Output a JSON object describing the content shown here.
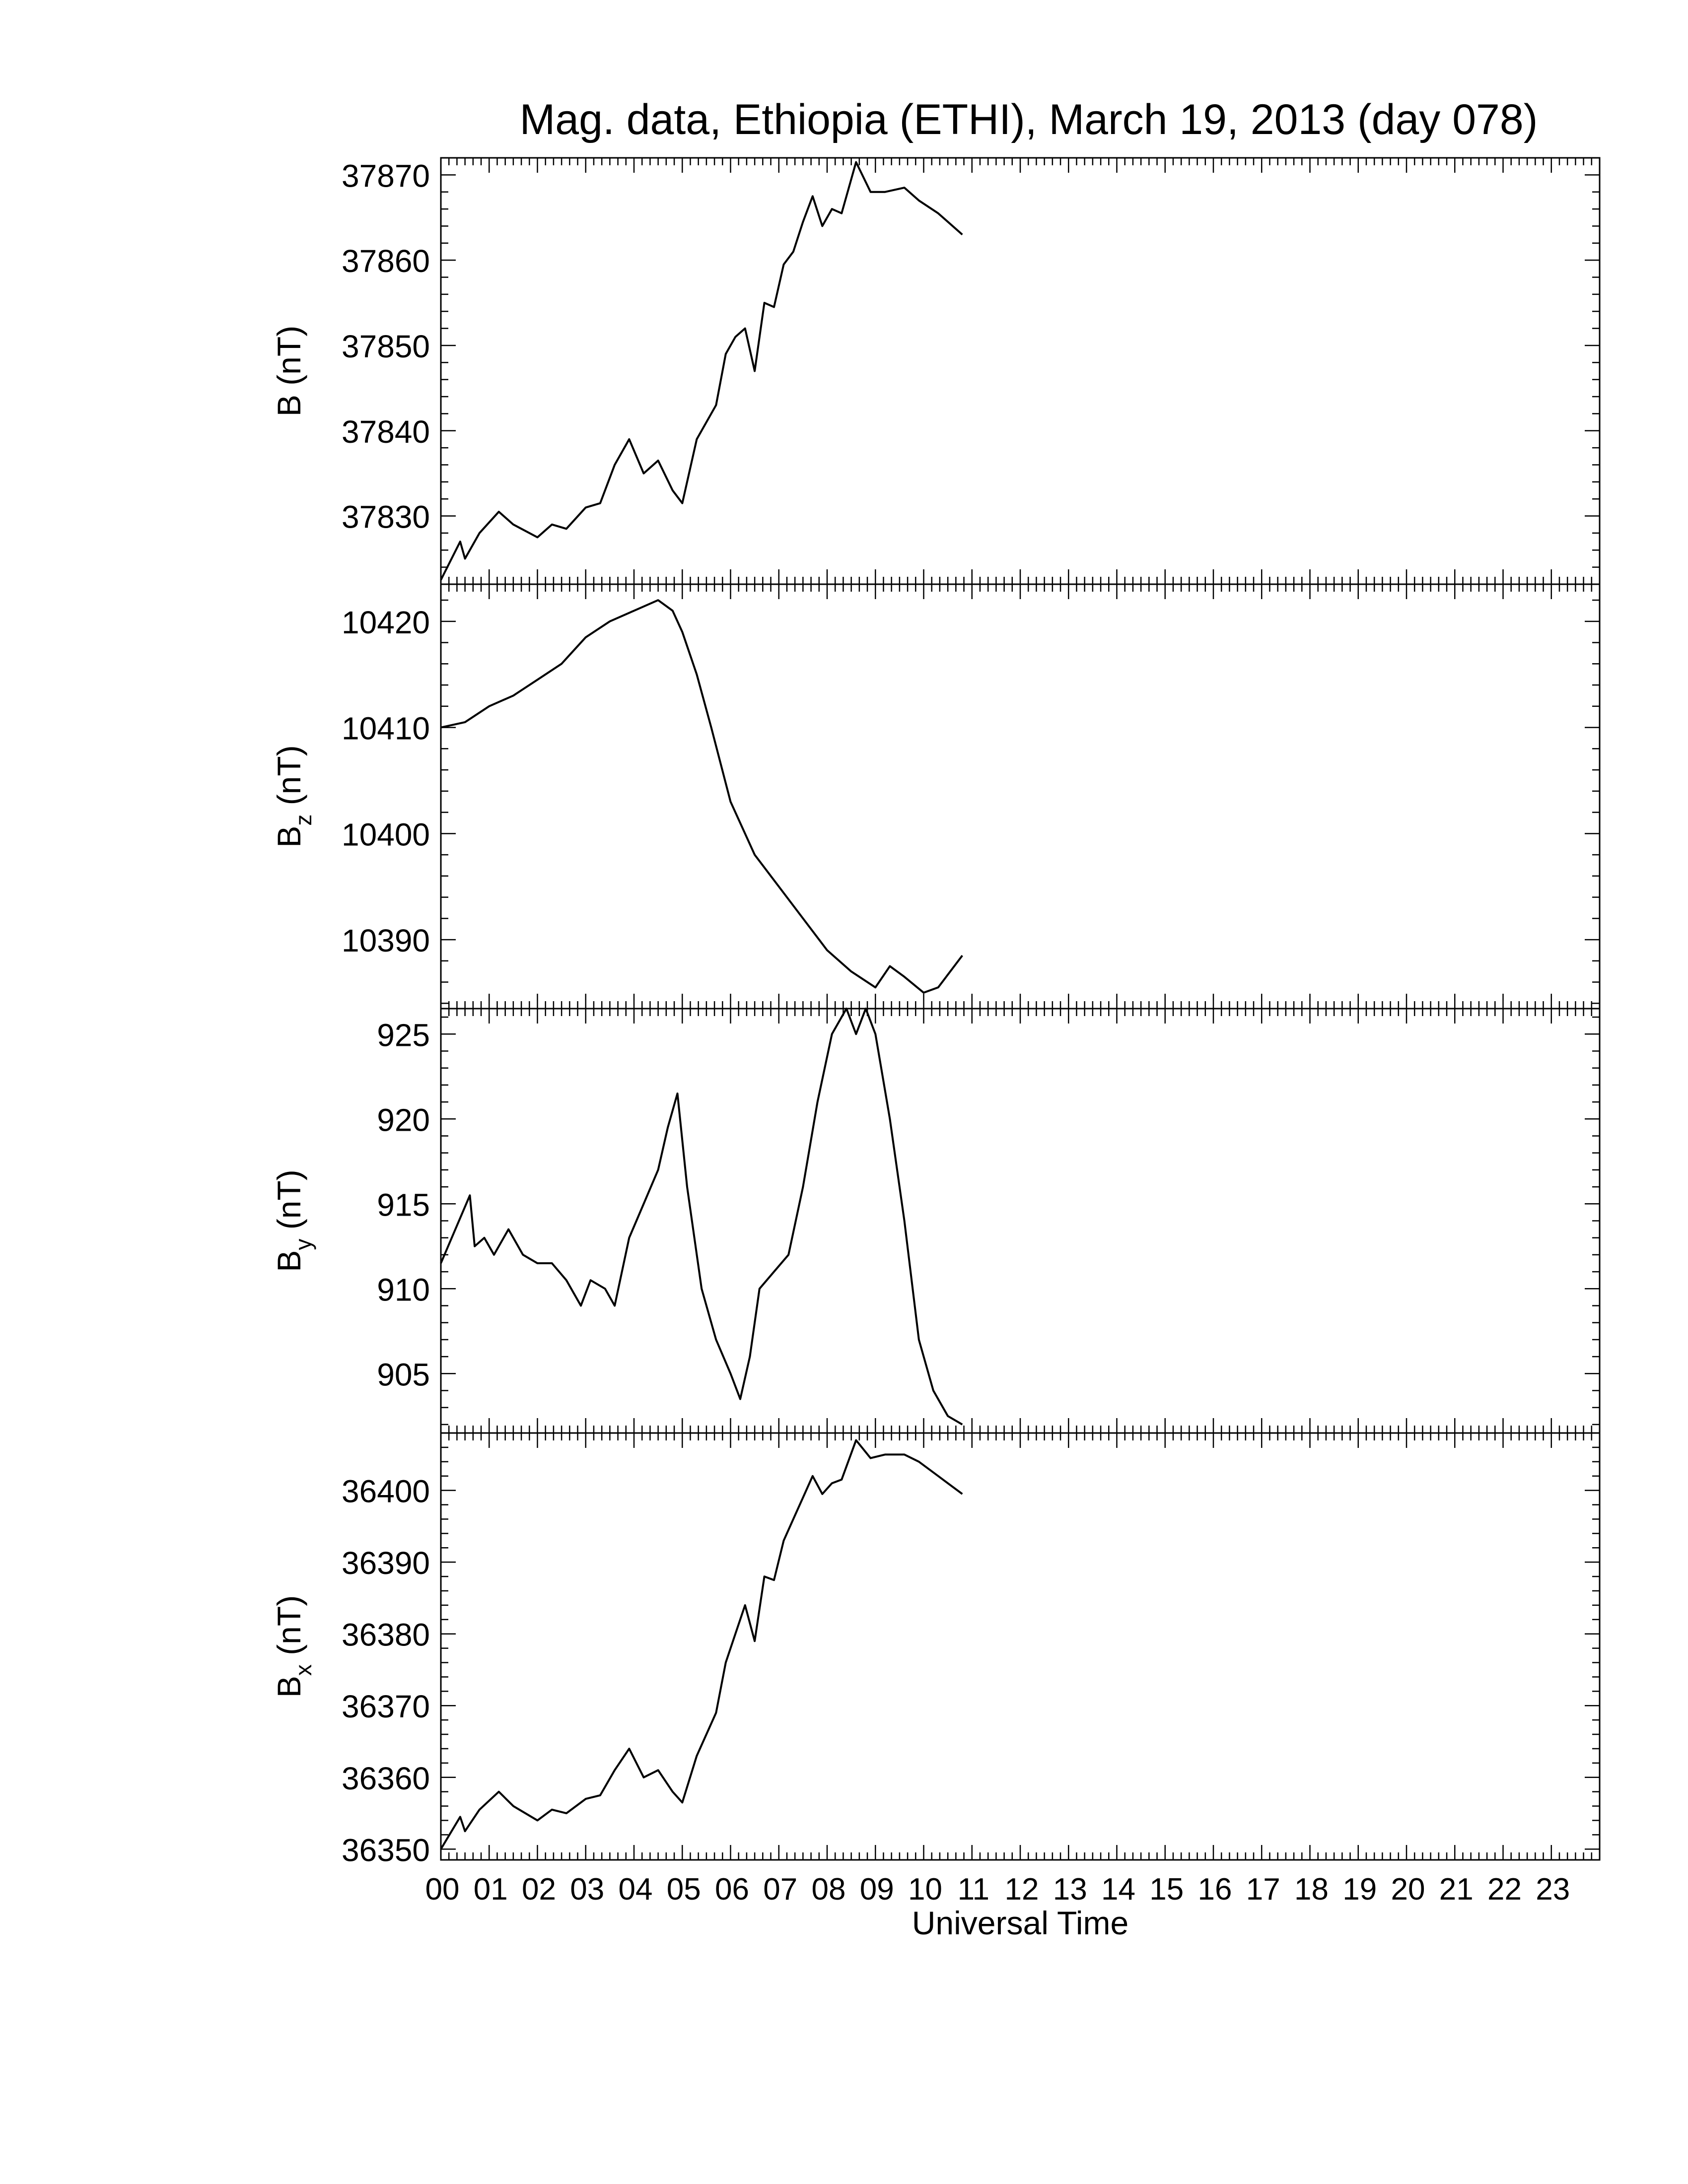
{
  "title": "Mag. data, Ethiopia (ETHI), March 19, 2013 (day 078)",
  "chart_data": [
    {
      "type": "line",
      "ylabel_base": "B",
      "ylabel_sub": "",
      "ylabel_unit": "(nT)",
      "ylim": [
        37822,
        37872
      ],
      "yticks": [
        37830,
        37840,
        37850,
        37860,
        37870
      ],
      "ytick_labels": [
        "37830",
        "37840",
        "37850",
        "37860",
        "37870"
      ],
      "x": [
        0,
        0.4,
        0.5,
        0.8,
        1.2,
        1.5,
        2.0,
        2.3,
        2.6,
        3.0,
        3.3,
        3.6,
        3.9,
        4.2,
        4.5,
        4.8,
        5.0,
        5.3,
        5.7,
        5.9,
        6.1,
        6.3,
        6.5,
        6.7,
        6.9,
        7.1,
        7.3,
        7.5,
        7.7,
        7.9,
        8.1,
        8.3,
        8.6,
        8.9,
        9.2,
        9.6,
        9.9,
        10.3,
        10.8
      ],
      "y": [
        37822.5,
        37827,
        37825,
        37828,
        37830.5,
        37829,
        37827.5,
        37829,
        37828.5,
        37831,
        37831.5,
        37836,
        37839,
        37835,
        37836.5,
        37833,
        37831.5,
        37839,
        37843,
        37849,
        37851,
        37852,
        37847,
        37855,
        37854.5,
        37859.5,
        37861,
        37864.5,
        37867.5,
        37864,
        37866,
        37865.5,
        37871.5,
        37868,
        37868,
        37868.5,
        37867,
        37865.5,
        37863
      ]
    },
    {
      "type": "line",
      "ylabel_base": "B",
      "ylabel_sub": "z",
      "ylabel_unit": "(nT)",
      "ylim": [
        10383.5,
        10423.5
      ],
      "yticks": [
        10390,
        10400,
        10410,
        10420
      ],
      "ytick_labels": [
        "10390",
        "10400",
        "10410",
        "10420"
      ],
      "x": [
        0,
        0.5,
        1.0,
        1.5,
        2.0,
        2.5,
        3.0,
        3.5,
        4.0,
        4.5,
        4.8,
        5.0,
        5.3,
        5.6,
        6.0,
        6.5,
        7.0,
        7.5,
        8.0,
        8.5,
        9.0,
        9.3,
        9.6,
        10.0,
        10.3,
        10.8
      ],
      "y": [
        10410,
        10410.5,
        10412,
        10413,
        10414.5,
        10416,
        10418.5,
        10420,
        10421,
        10422,
        10421,
        10419,
        10415,
        10410,
        10403,
        10398,
        10395,
        10392,
        10389,
        10387,
        10385.5,
        10387.5,
        10386.5,
        10385,
        10385.5,
        10388.5
      ]
    },
    {
      "type": "line",
      "ylabel_base": "B",
      "ylabel_sub": "y",
      "ylabel_unit": "(nT)",
      "ylim": [
        901.5,
        926.5
      ],
      "yticks": [
        905,
        910,
        915,
        920,
        925
      ],
      "ytick_labels": [
        "905",
        "910",
        "915",
        "920",
        "925"
      ],
      "x": [
        0,
        0.3,
        0.6,
        0.7,
        0.9,
        1.1,
        1.4,
        1.7,
        2.0,
        2.3,
        2.6,
        2.9,
        3.1,
        3.4,
        3.6,
        3.9,
        4.2,
        4.5,
        4.7,
        4.9,
        5.1,
        5.4,
        5.7,
        6.0,
        6.2,
        6.4,
        6.6,
        6.9,
        7.2,
        7.5,
        7.8,
        8.1,
        8.4,
        8.6,
        8.8,
        9.0,
        9.3,
        9.6,
        9.9,
        10.2,
        10.5,
        10.8
      ],
      "y": [
        911.5,
        913.5,
        915.5,
        912.5,
        913,
        912,
        913.5,
        912,
        911.5,
        911.5,
        910.5,
        909,
        910.5,
        910,
        909,
        913,
        915,
        917,
        919.5,
        921.5,
        916,
        910,
        907,
        905,
        903.5,
        906,
        910,
        911,
        912,
        916,
        921,
        925,
        926.5,
        925,
        926.5,
        925,
        920,
        914,
        907,
        904,
        902.5,
        902
      ]
    },
    {
      "type": "line",
      "ylabel_base": "B",
      "ylabel_sub": "x",
      "ylabel_unit": "(nT)",
      "ylim": [
        36348.5,
        36408
      ],
      "yticks": [
        36350,
        36360,
        36370,
        36380,
        36390,
        36400
      ],
      "ytick_labels": [
        "36350",
        "36360",
        "36370",
        "36380",
        "36390",
        "36400"
      ],
      "x": [
        0,
        0.4,
        0.5,
        0.8,
        1.2,
        1.5,
        2.0,
        2.3,
        2.6,
        3.0,
        3.3,
        3.6,
        3.9,
        4.2,
        4.5,
        4.8,
        5.0,
        5.3,
        5.7,
        5.9,
        6.1,
        6.3,
        6.5,
        6.7,
        6.9,
        7.1,
        7.3,
        7.5,
        7.7,
        7.9,
        8.1,
        8.3,
        8.6,
        8.9,
        9.2,
        9.6,
        9.9,
        10.3,
        10.8
      ],
      "y": [
        36350,
        36354.5,
        36352.5,
        36355.5,
        36358,
        36356,
        36354,
        36355.5,
        36355,
        36357,
        36357.5,
        36361,
        36364,
        36360,
        36361,
        36358,
        36356.5,
        36363,
        36369,
        36376,
        36380,
        36384,
        36379,
        36388,
        36387.5,
        36393,
        36396,
        36399,
        36402,
        36399.5,
        36401,
        36401.5,
        36407,
        36404.5,
        36405,
        36405,
        36404,
        36402,
        36399.5
      ]
    }
  ],
  "xaxis": {
    "label": "Universal Time",
    "xlim": [
      0,
      24
    ],
    "major_ticks": [
      0,
      1,
      2,
      3,
      4,
      5,
      6,
      7,
      8,
      9,
      10,
      11,
      12,
      13,
      14,
      15,
      16,
      17,
      18,
      19,
      20,
      21,
      22,
      23
    ],
    "major_tick_labels": [
      "00",
      "01",
      "02",
      "03",
      "04",
      "05",
      "06",
      "07",
      "08",
      "09",
      "10",
      "11",
      "12",
      "13",
      "14",
      "15",
      "16",
      "17",
      "18",
      "19",
      "20",
      "21",
      "22",
      "23"
    ]
  }
}
